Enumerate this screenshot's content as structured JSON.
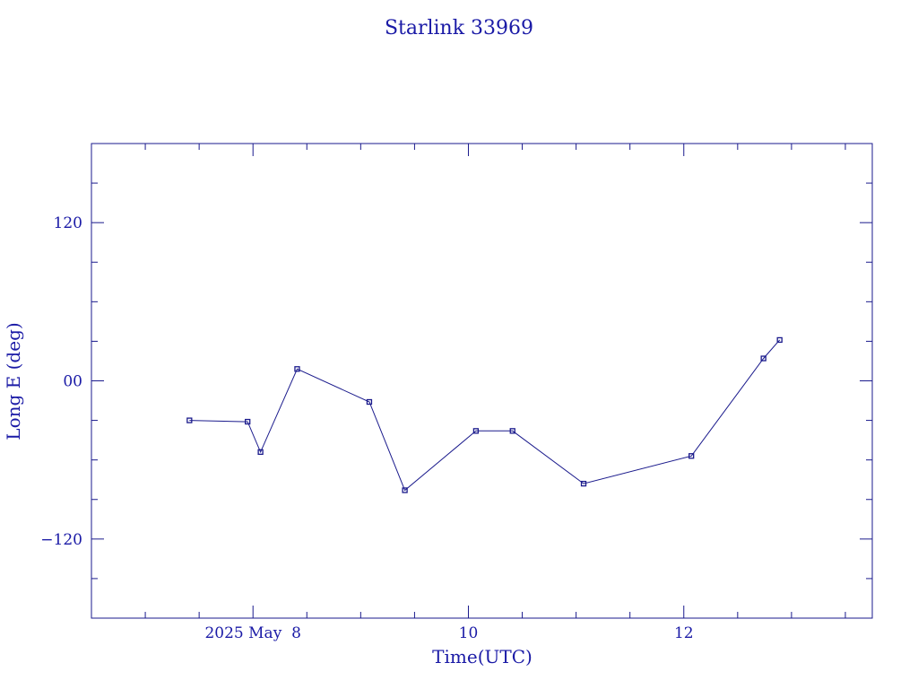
{
  "chart_data": {
    "type": "line",
    "title": "Starlink 33969",
    "xlabel": "Time(UTC)",
    "ylabel": "Long E (deg)",
    "x_unit": "days (2025 May)",
    "xlim": [
      6.5,
      13.75
    ],
    "ylim": [
      -180,
      180
    ],
    "grid": false,
    "x_tick_labels": [
      {
        "x": 8,
        "label": "2025 May  8"
      },
      {
        "x": 10,
        "label": "10"
      },
      {
        "x": 12,
        "label": "12"
      }
    ],
    "y_tick_labels": [
      {
        "y": 120,
        "label": "120"
      },
      {
        "y": 0,
        "label": "00"
      },
      {
        "y": -120,
        "label": "−120"
      }
    ],
    "series": [
      {
        "x": [
          7.41,
          7.95,
          8.07,
          8.41,
          9.08,
          9.41,
          10.07,
          10.41,
          11.07,
          12.07,
          12.74,
          12.89
        ],
        "y": [
          -30,
          -31,
          -54,
          9,
          -16,
          -83,
          -38,
          -38,
          -78,
          -57,
          17,
          31
        ]
      }
    ]
  },
  "colors": {
    "axis": "#1a1a8c",
    "line": "#1a1a8c",
    "text": "#1a1aa6",
    "background": "#ffffff"
  }
}
